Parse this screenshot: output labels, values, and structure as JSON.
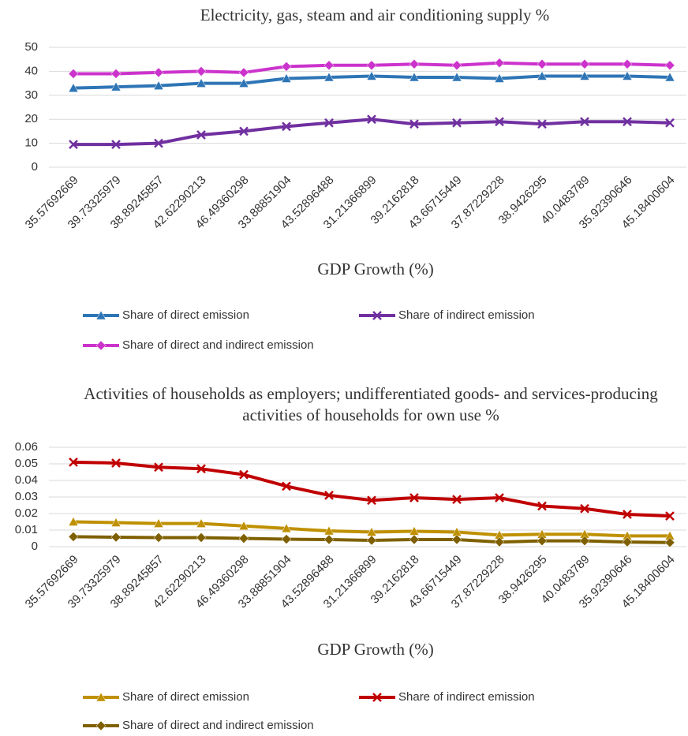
{
  "chart_data": [
    {
      "type": "line",
      "title": "Electricity, gas, steam and air conditioning supply %",
      "x_label": "GDP Growth (%)",
      "categories": [
        "35.57692669",
        "39.73325979",
        "38.89245857",
        "42.62290213",
        "46.49360298",
        "33.88851904",
        "43.52896488",
        "31.21366899",
        "39.2162818",
        "43.66715449",
        "37.87229228",
        "38.9426295",
        "40.0483789",
        "35.92390646",
        "45.18400604"
      ],
      "ylim": [
        0,
        50
      ],
      "yticks": [
        0,
        10,
        20,
        30,
        40,
        50
      ],
      "grid": true,
      "series": [
        {
          "name": "Share of direct emission",
          "color": "#2e75b6",
          "marker": "triangle",
          "values": [
            33,
            33.5,
            34,
            35,
            35,
            37,
            37.5,
            38,
            37.5,
            37.5,
            37,
            38,
            38,
            38,
            37.5
          ]
        },
        {
          "name": "Share of indirect emission",
          "color": "#7030a0",
          "marker": "x",
          "values": [
            9.5,
            9.5,
            10,
            13.5,
            15,
            17,
            18.5,
            20,
            18,
            18.5,
            19,
            18,
            19,
            19,
            18.5
          ]
        },
        {
          "name": "Share of direct and indirect emission",
          "color": "#cc33cc",
          "marker": "diamond",
          "values": [
            39,
            39,
            39.5,
            40,
            39.5,
            42,
            42.5,
            42.5,
            43,
            42.5,
            43.5,
            43,
            43,
            43,
            42.5
          ]
        }
      ]
    },
    {
      "type": "line",
      "title": "Activities of households as employers; undifferentiated goods- and services-producing activities of households for own use %",
      "x_label": "GDP Growth (%)",
      "categories": [
        "35.57692669",
        "39.73325979",
        "38.89245857",
        "42.62290213",
        "46.49360298",
        "33.88851904",
        "43.52896488",
        "31.21366899",
        "39.2162818",
        "43.66715449",
        "37.87229228",
        "38.9426295",
        "40.0483789",
        "35.92390646",
        "45.18400604"
      ],
      "ylim": [
        0,
        0.06
      ],
      "yticks": [
        0,
        0.01,
        0.02,
        0.03,
        0.04,
        0.05,
        0.06
      ],
      "grid": true,
      "series": [
        {
          "name": "Share of direct emission",
          "color": "#bf9000",
          "marker": "triangle",
          "values": [
            0.015,
            0.0145,
            0.014,
            0.014,
            0.0125,
            0.011,
            0.0095,
            0.0088,
            0.0093,
            0.0088,
            0.007,
            0.0075,
            0.0075,
            0.0065,
            0.0065
          ]
        },
        {
          "name": "Share of indirect emission",
          "color": "#c00000",
          "marker": "x",
          "values": [
            0.051,
            0.0505,
            0.048,
            0.047,
            0.0435,
            0.0365,
            0.031,
            0.028,
            0.0295,
            0.0285,
            0.0295,
            0.0245,
            0.023,
            0.0195,
            0.0185
          ]
        },
        {
          "name": "Share of direct and indirect emission",
          "color": "#7f6000",
          "marker": "diamond",
          "values": [
            0.006,
            0.0057,
            0.0055,
            0.0055,
            0.005,
            0.0045,
            0.0043,
            0.0038,
            0.0043,
            0.0043,
            0.0028,
            0.0035,
            0.0035,
            0.0028,
            0.0025
          ]
        }
      ]
    }
  ]
}
